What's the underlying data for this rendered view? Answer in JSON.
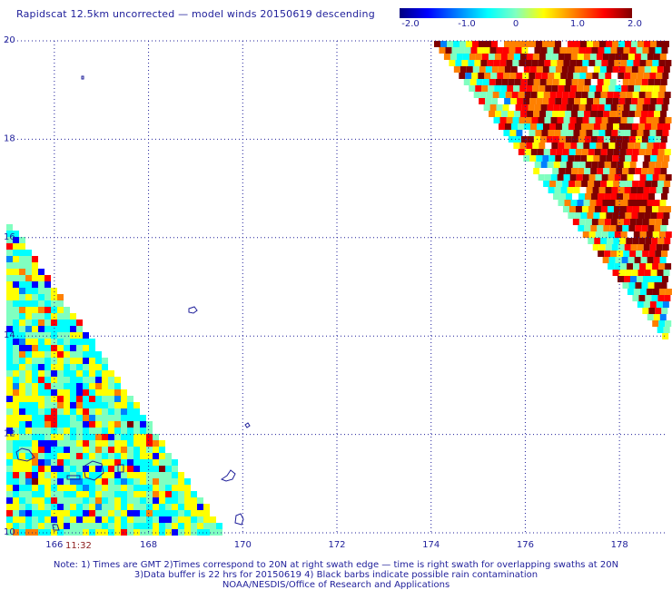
{
  "title": "Rapidscat 12.5km uncorrected — model winds 20150619 descending",
  "colorbar": {
    "labels": [
      "-2.0",
      "-1.0",
      "0",
      "1.0",
      "2.0"
    ],
    "values": [
      -2.0,
      -1.0,
      0,
      1.0,
      2.0
    ],
    "range": [
      -2.0,
      2.0
    ],
    "colors": [
      "#000080",
      "#0000ff",
      "#0080ff",
      "#00ffff",
      "#80ffc0",
      "#ffff00",
      "#ff8000",
      "#ff0000",
      "#800000"
    ]
  },
  "map": {
    "lon_range": [
      165,
      179
    ],
    "lat_range": [
      10,
      20
    ],
    "lon_ticks": [
      "166",
      "168",
      "170",
      "172",
      "174",
      "176",
      "178"
    ],
    "lat_ticks": [
      "10",
      "12",
      "14",
      "16",
      "18",
      "20"
    ],
    "grid": "dotted",
    "time_label": "11:32",
    "coast_color": "#1e1e9a"
  },
  "notes": [
    "Note: 1) Times are GMT 2)Times correspond to 20N at right swath edge — time is right swath for overlapping swaths at 20N",
    "3)Data buffer is 22 hrs for 20150619 4) Black barbs indicate possible rain contamination",
    "NOAA/NESDIS/Office of Research and Applications"
  ]
}
